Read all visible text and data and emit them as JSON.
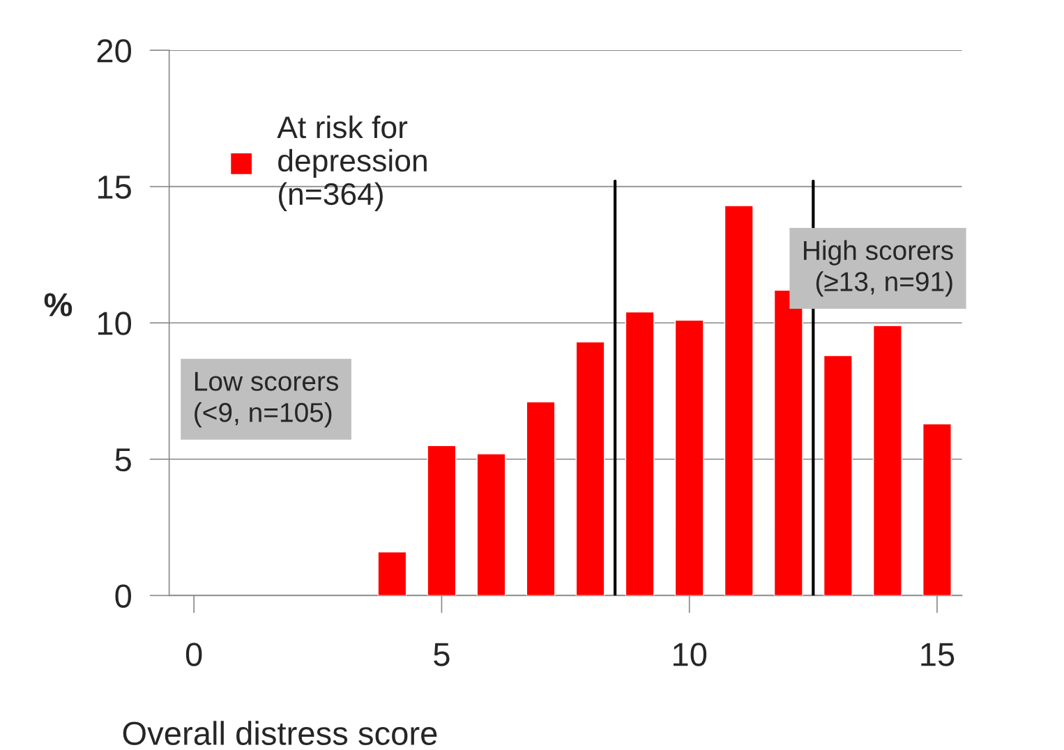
{
  "chart_data": {
    "type": "bar",
    "x": [
      4,
      5,
      6,
      7,
      8,
      9,
      10,
      11,
      12,
      13,
      14,
      15
    ],
    "series": [
      {
        "name": "At risk for\ndepression\n(n=364)",
        "color": "#ff0000",
        "values": [
          1.6,
          5.5,
          5.2,
          7.1,
          9.3,
          10.4,
          10.1,
          14.3,
          11.2,
          8.8,
          9.9,
          6.3
        ]
      }
    ],
    "xlabel": "Overall distress score",
    "ylabel": "%",
    "xlim": [
      -0.5,
      15.5
    ],
    "xticks": [
      0,
      5,
      10,
      15
    ],
    "ylim": [
      0,
      20
    ],
    "yticks": [
      0,
      5,
      10,
      15,
      20
    ],
    "grid": "y",
    "legend": "top left",
    "ref_lines": [
      {
        "axis": "x",
        "value": 8.5,
        "color": "#000000"
      },
      {
        "axis": "x",
        "value": 12.5,
        "color": "#000000"
      }
    ],
    "annotations": [
      "Low scorers\n(<9, n=105)",
      "High scorers\n(≥13, n=91)"
    ]
  }
}
